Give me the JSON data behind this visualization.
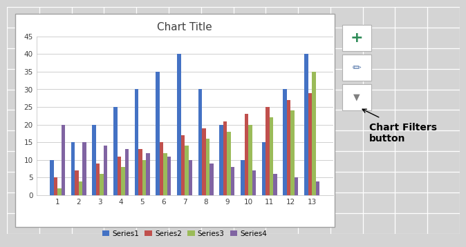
{
  "title": "Chart Title",
  "categories": [
    1,
    2,
    3,
    4,
    5,
    6,
    7,
    8,
    9,
    10,
    11,
    12,
    13
  ],
  "series1": [
    10,
    15,
    20,
    25,
    30,
    35,
    40,
    30,
    20,
    10,
    15,
    30,
    40
  ],
  "series2": [
    5,
    7,
    9,
    11,
    13,
    15,
    17,
    19,
    21,
    23,
    25,
    27,
    29
  ],
  "series3": [
    2,
    4,
    6,
    8,
    10,
    12,
    14,
    16,
    18,
    20,
    22,
    24,
    35
  ],
  "series4": [
    20,
    15,
    14,
    13,
    12,
    11,
    10,
    9,
    8,
    7,
    6,
    5,
    4
  ],
  "color1": "#4472C4",
  "color2": "#C0504D",
  "color3": "#9BBB59",
  "color4": "#8064A2",
  "ylim": [
    0,
    45
  ],
  "yticks": [
    0,
    5,
    10,
    15,
    20,
    25,
    30,
    35,
    40,
    45
  ],
  "legend_labels": [
    "Series1",
    "Series2",
    "Series3",
    "Series4"
  ],
  "annotation_text": "Chart Filters\nbutton",
  "bg_color": "#ffffff",
  "outer_bg": "#d4d4d4",
  "chart_border": "#c8c8c8",
  "grid_line_color": "#ffffff",
  "bar_width": 0.18
}
